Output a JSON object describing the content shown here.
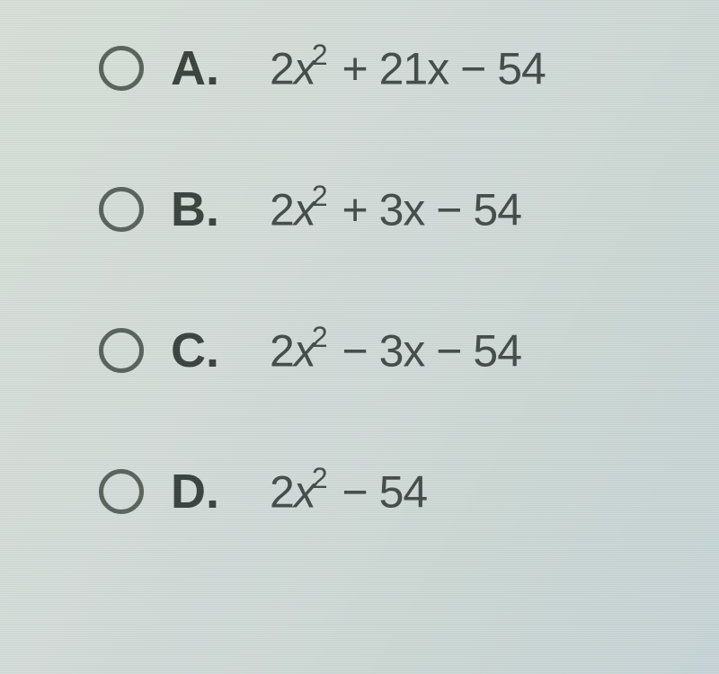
{
  "background": {
    "gradient_from": "#d8e0d8",
    "gradient_to": "#c8d5d8"
  },
  "text_color": "#3a4240",
  "expr_color": "#444c4a",
  "radio_border_color": "#5a625c",
  "font_family": "Arial",
  "letter_fontsize": 54,
  "expr_fontsize": 50,
  "sup_fontsize": 32,
  "options": [
    {
      "letter": "A.",
      "coef": "2",
      "sup": "2",
      "tail": " + 21x − 54",
      "selected": false
    },
    {
      "letter": "B.",
      "coef": "2",
      "sup": "2",
      "tail": " + 3x − 54",
      "selected": false
    },
    {
      "letter": "C.",
      "coef": "2",
      "sup": "2",
      "tail": " − 3x − 54",
      "selected": false
    },
    {
      "letter": "D.",
      "coef": "2",
      "sup": "2",
      "tail": " − 54",
      "selected": false
    }
  ]
}
